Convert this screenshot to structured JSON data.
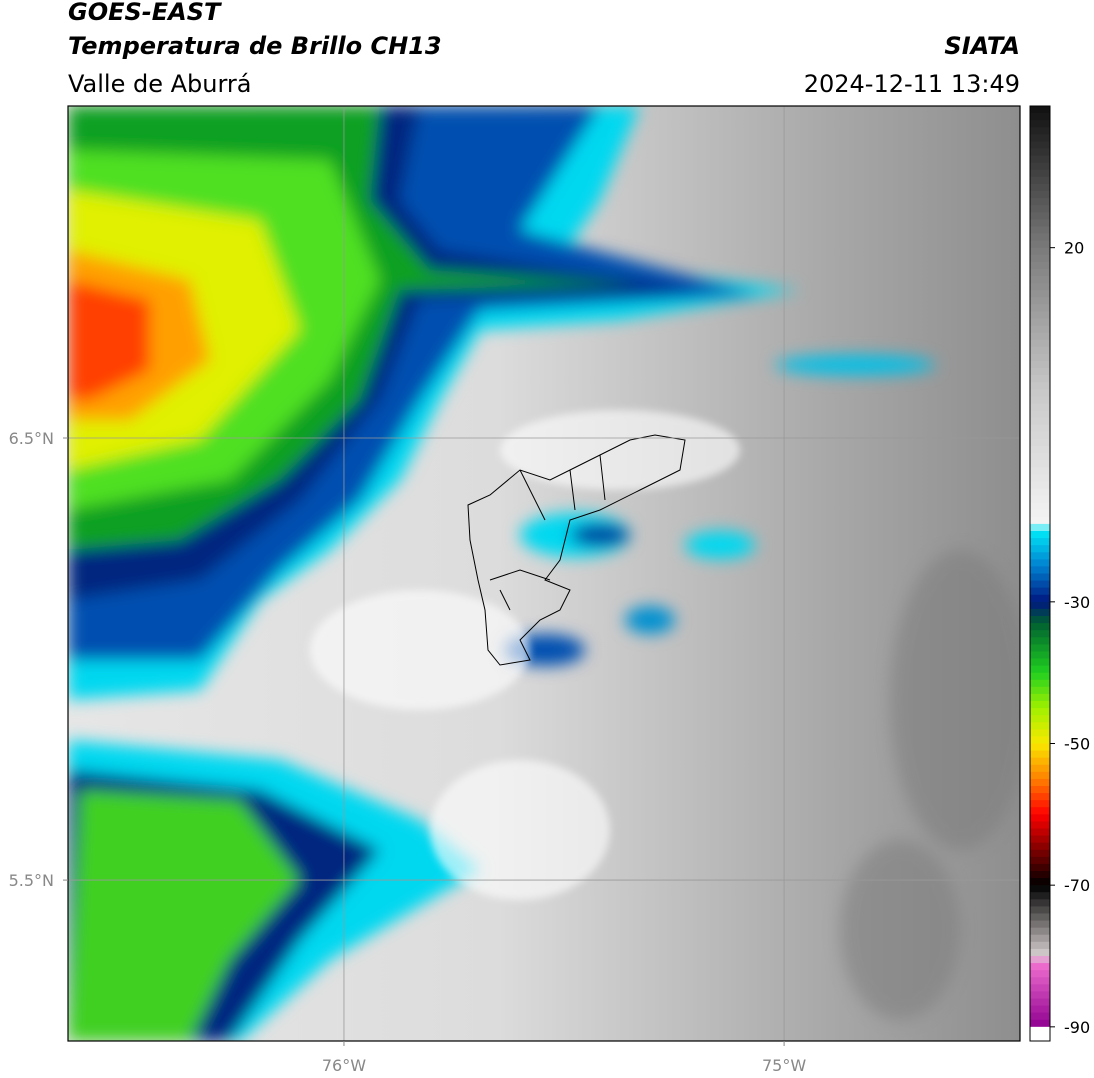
{
  "header": {
    "title": "GOES-EAST",
    "subtitle": "Temperatura de Brillo CH13",
    "region": "Valle de Aburrá",
    "source": "SIATA",
    "datetime": "2024-12-11 13:49"
  },
  "map": {
    "xlim": [
      -76.627,
      -74.464
    ],
    "ylim": [
      5.136,
      7.251
    ],
    "xticks": [
      {
        "value": -76,
        "label": "76°W"
      },
      {
        "value": -75,
        "label": "75°W"
      }
    ],
    "yticks": [
      {
        "value": 6.5,
        "label": "6.5°N"
      },
      {
        "value": 5.5,
        "label": "5.5°N"
      }
    ],
    "grid": true
  },
  "colorbar": {
    "lim": [
      -92,
      40
    ],
    "ticks": [
      20,
      -30,
      -50,
      -70,
      -90
    ]
  }
}
